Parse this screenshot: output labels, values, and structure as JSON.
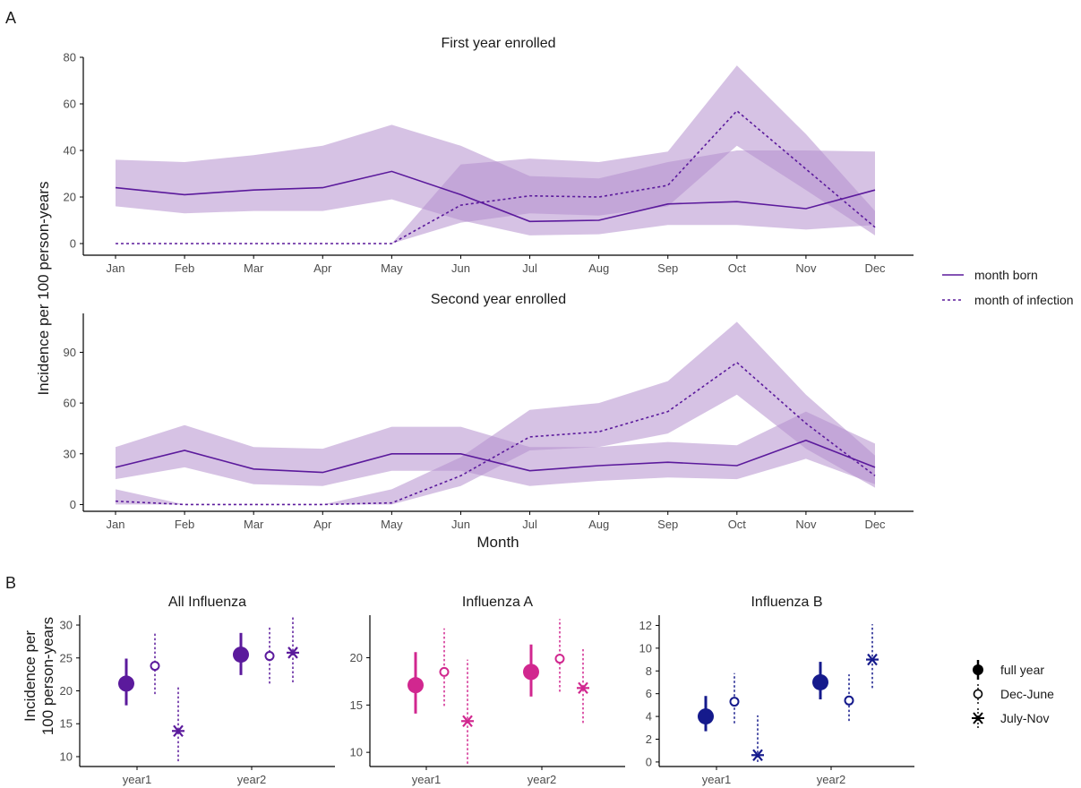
{
  "colors": {
    "purple": "#5b1a9c",
    "ribbon": "#b48fce",
    "magenta": "#d1278f",
    "navy": "#151a8c",
    "axis": "#000000",
    "text": "#1a1a1a"
  },
  "labels": {
    "panel_a": "A",
    "panel_b": "B",
    "ylabel_a": "Incidence per 100 person-years",
    "xlabel_a": "Month",
    "ylabel_b_line1": "Incidence per",
    "ylabel_b_line2": "100 person-years"
  },
  "legend_a": [
    {
      "label": "month born",
      "style": "solid"
    },
    {
      "label": "month of infection",
      "style": "dashed"
    }
  ],
  "legend_b": [
    {
      "label": "full year",
      "shape": "filled-circle"
    },
    {
      "label": "Dec-June",
      "shape": "open-circle"
    },
    {
      "label": "July-Nov",
      "shape": "asterisk"
    }
  ],
  "chart_data": [
    {
      "type": "line",
      "title": "First year enrolled",
      "x": [
        "Jan",
        "Feb",
        "Mar",
        "Apr",
        "May",
        "Jun",
        "Jul",
        "Aug",
        "Sep",
        "Oct",
        "Nov",
        "Dec"
      ],
      "ylim": [
        -5,
        80
      ],
      "yticks": [
        0,
        20,
        40,
        60,
        80
      ],
      "series": [
        {
          "name": "month born",
          "style": "solid",
          "values": [
            24,
            21,
            23,
            24,
            31,
            21,
            9.5,
            10,
            17,
            18,
            15,
            23
          ],
          "lower": [
            16,
            13,
            14,
            14,
            19,
            10,
            3.5,
            4,
            8,
            8,
            6,
            8
          ],
          "upper": [
            36,
            35,
            38,
            42,
            51,
            42,
            29,
            28,
            35,
            40,
            40,
            39.5
          ]
        },
        {
          "name": "month of infection",
          "style": "dashed",
          "values": [
            0,
            0,
            0,
            0,
            0,
            16.5,
            20.5,
            20,
            25,
            57,
            32,
            7
          ],
          "lower": [
            0,
            0,
            0,
            0,
            0,
            9,
            13,
            12,
            16,
            42,
            23,
            3.5
          ],
          "upper": [
            0,
            0,
            0,
            0,
            0,
            34,
            36.5,
            35,
            39.5,
            76.5,
            47,
            14
          ]
        }
      ]
    },
    {
      "type": "line",
      "title": "Second year enrolled",
      "x": [
        "Jan",
        "Feb",
        "Mar",
        "Apr",
        "May",
        "Jun",
        "Jul",
        "Aug",
        "Sep",
        "Oct",
        "Nov",
        "Dec"
      ],
      "ylim": [
        -4,
        113
      ],
      "yticks": [
        0,
        30,
        60,
        90
      ],
      "series": [
        {
          "name": "month born",
          "style": "solid",
          "values": [
            22,
            32,
            21,
            19,
            30,
            30,
            20,
            23,
            25,
            23,
            38,
            22
          ],
          "lower": [
            15,
            22,
            12,
            11,
            20,
            20,
            11,
            14,
            16,
            15,
            27,
            12
          ],
          "upper": [
            34,
            47,
            34,
            33,
            46,
            46,
            34,
            34,
            37,
            35,
            55,
            36
          ]
        },
        {
          "name": "month of infection",
          "style": "dashed",
          "values": [
            2,
            0,
            0,
            0,
            1,
            17,
            40,
            43,
            55,
            84,
            48,
            17
          ],
          "lower": [
            0,
            0,
            0,
            0,
            0,
            11,
            32,
            34,
            42,
            65,
            33,
            10
          ],
          "upper": [
            9,
            0,
            0,
            0,
            9,
            28,
            56,
            60,
            73,
            108,
            65,
            29
          ]
        }
      ]
    },
    {
      "type": "scatter",
      "title": "All Influenza",
      "color": "#5b1a9c",
      "categories": [
        "year1",
        "year2"
      ],
      "ylim": [
        8.5,
        31.5
      ],
      "yticks": [
        10,
        15,
        20,
        25,
        30
      ],
      "series": [
        {
          "name": "full year",
          "values": [
            21.1,
            25.5
          ],
          "lower": [
            17.8,
            22.4
          ],
          "upper": [
            24.9,
            28.8
          ]
        },
        {
          "name": "Dec-June",
          "values": [
            23.8,
            25.3
          ],
          "lower": [
            19.5,
            21.1
          ],
          "upper": [
            28.7,
            29.8
          ]
        },
        {
          "name": "July-Nov",
          "values": [
            13.9,
            25.8
          ],
          "lower": [
            9.3,
            21.3
          ],
          "upper": [
            20.8,
            31.2
          ]
        }
      ]
    },
    {
      "type": "scatter",
      "title": "Influenza A",
      "color": "#d1278f",
      "categories": [
        "year1",
        "year2"
      ],
      "ylim": [
        8.5,
        24.5
      ],
      "yticks": [
        10,
        15,
        20
      ],
      "series": [
        {
          "name": "full year",
          "values": [
            17.1,
            18.5
          ],
          "lower": [
            14.1,
            15.9
          ],
          "upper": [
            20.6,
            21.4
          ]
        },
        {
          "name": "Dec-June",
          "values": [
            18.5,
            19.9
          ],
          "lower": [
            14.9,
            16.4
          ],
          "upper": [
            23.1,
            24.1
          ]
        },
        {
          "name": "July-Nov",
          "values": [
            13.3,
            16.8
          ],
          "lower": [
            8.8,
            13.1
          ],
          "upper": [
            19.8,
            20.9
          ]
        }
      ]
    },
    {
      "type": "scatter",
      "title": "Influenza B",
      "color": "#151a8c",
      "categories": [
        "year1",
        "year2"
      ],
      "ylim": [
        -0.4,
        12.9
      ],
      "yticks": [
        0,
        2,
        4,
        6,
        8,
        10,
        12
      ],
      "series": [
        {
          "name": "full year",
          "values": [
            4.0,
            7.0
          ],
          "lower": [
            2.7,
            5.5
          ],
          "upper": [
            5.8,
            8.8
          ]
        },
        {
          "name": "Dec-June",
          "values": [
            5.3,
            5.4
          ],
          "lower": [
            3.4,
            3.6
          ],
          "upper": [
            7.8,
            7.7
          ]
        },
        {
          "name": "July-Nov",
          "values": [
            0.6,
            9.0
          ],
          "lower": [
            0.0,
            6.5
          ],
          "upper": [
            4.1,
            12.1
          ]
        }
      ]
    }
  ]
}
